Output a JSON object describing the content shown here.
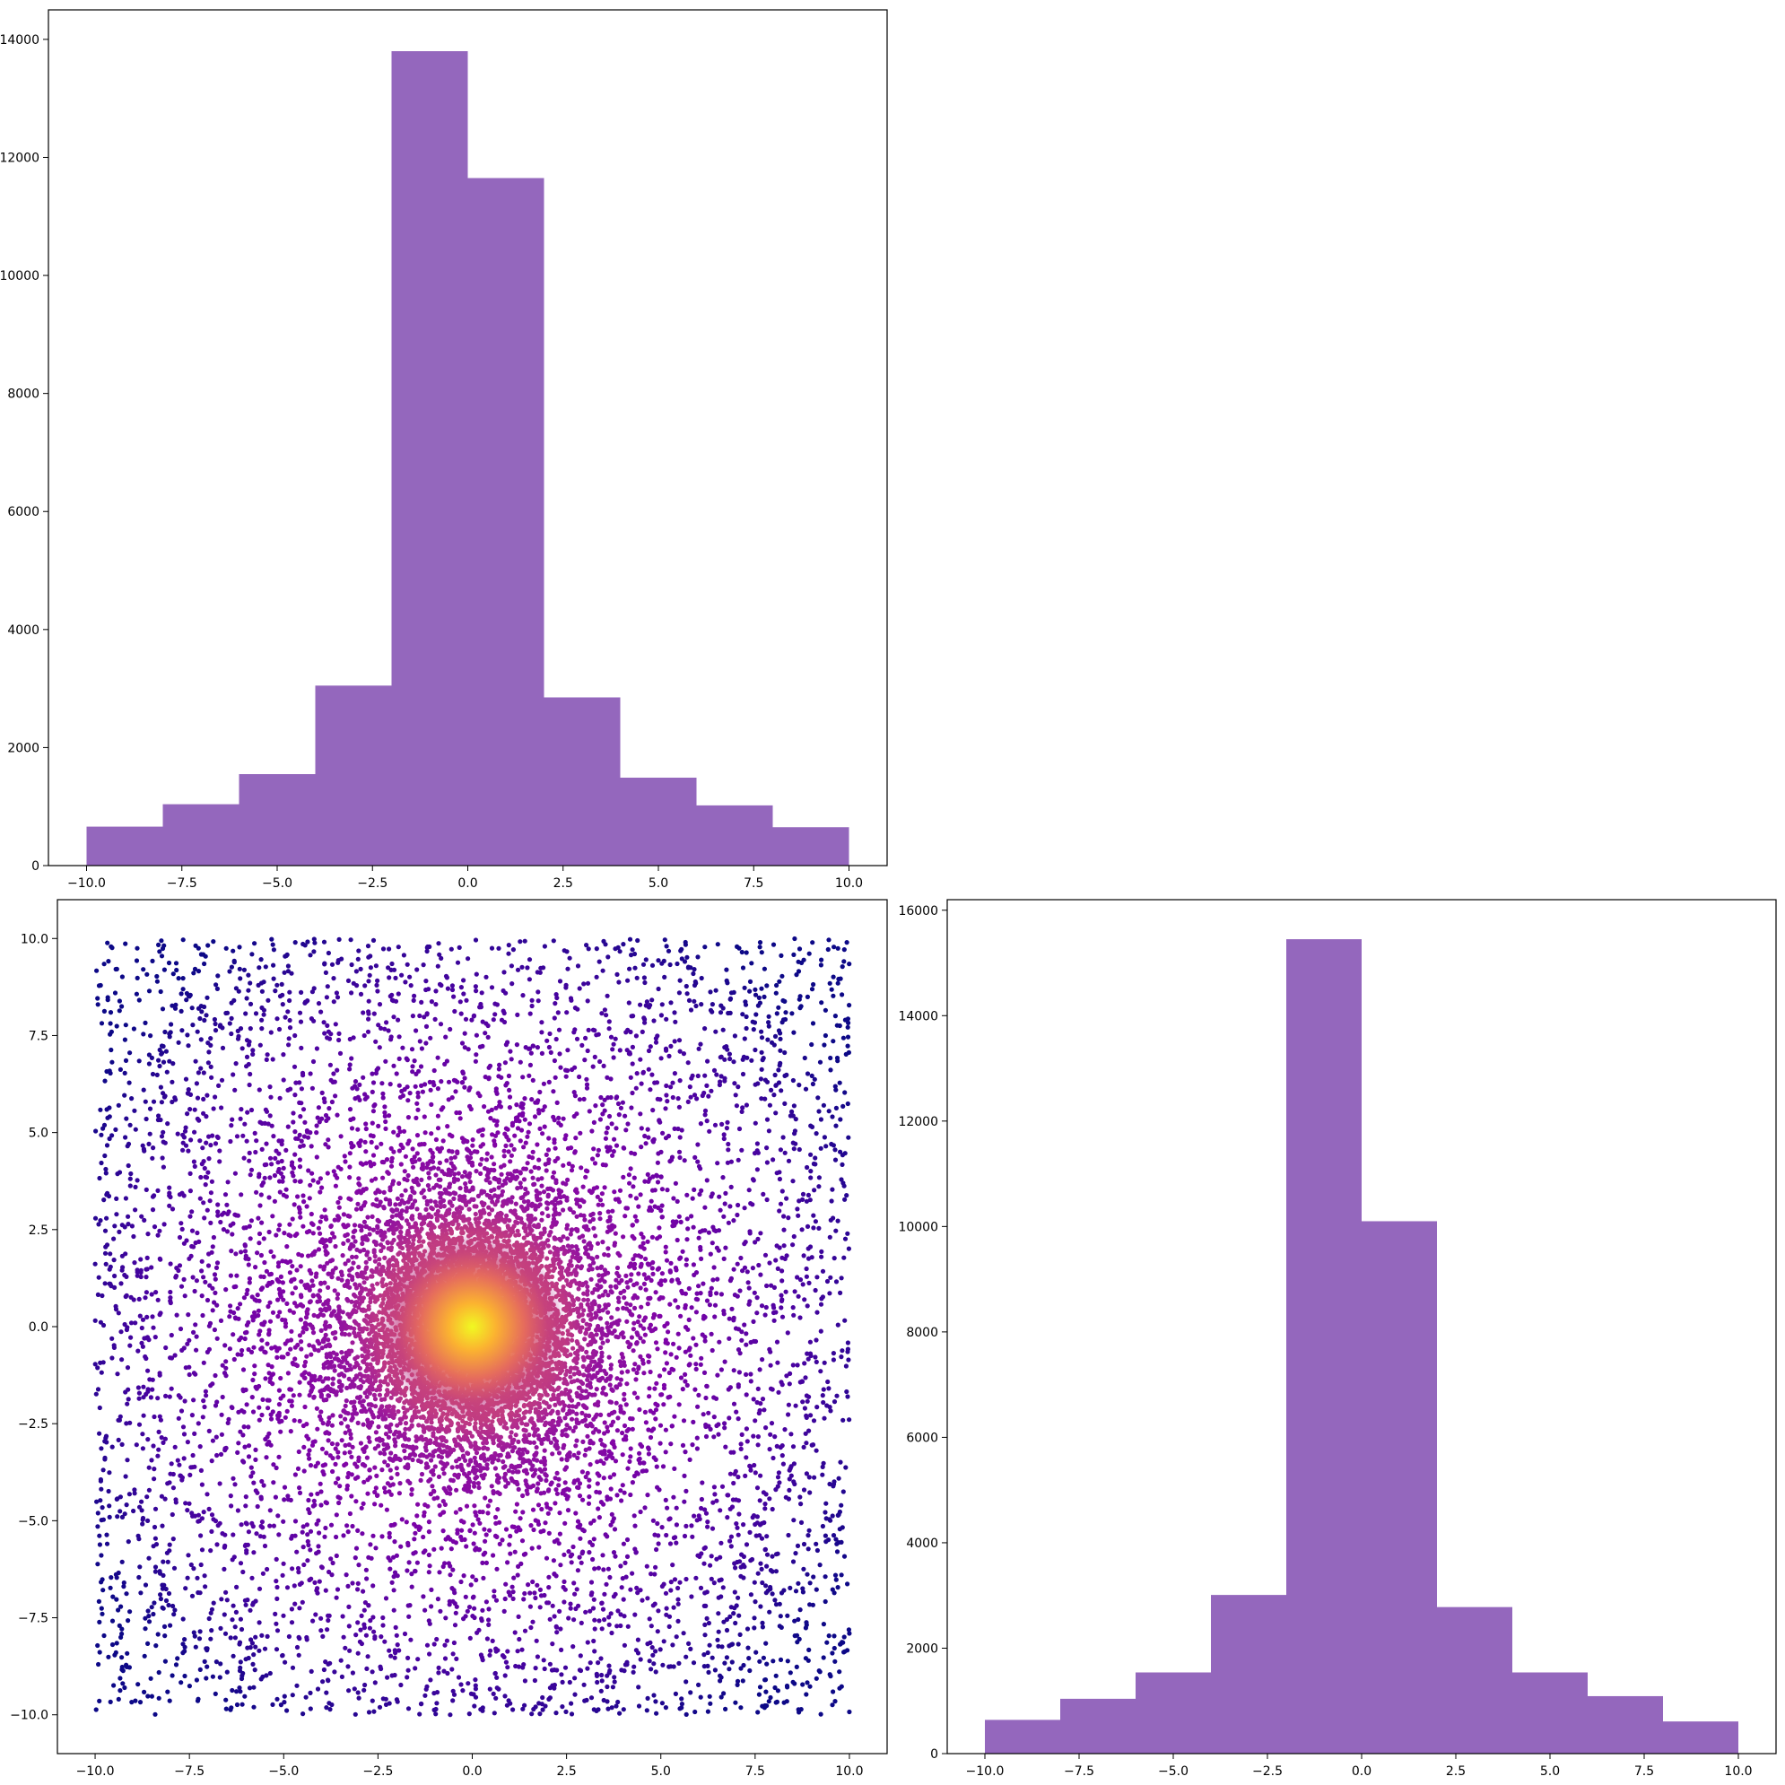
{
  "colors": {
    "hist_fill": "#9467bd",
    "scatter_colormap": "plasma",
    "scatter_low": "#1a0a8c",
    "scatter_high": "#f0f921"
  },
  "chart_data": [
    {
      "id": "top-left-histogram",
      "type": "bar",
      "subtype": "histogram",
      "bin_edges": [
        -10,
        -8,
        -6,
        -4,
        -2,
        0,
        2,
        4,
        6,
        8,
        10
      ],
      "values": [
        660,
        1040,
        1550,
        3050,
        13800,
        11650,
        2850,
        1490,
        1020,
        650
      ],
      "xlim": [
        -11,
        11
      ],
      "ylim": [
        0,
        14500
      ],
      "xticks": [
        -10.0,
        -7.5,
        -5.0,
        -2.5,
        0.0,
        2.5,
        5.0,
        7.5,
        10.0
      ],
      "xtick_labels": [
        "−10.0",
        "−7.5",
        "−5.0",
        "−2.5",
        "0.0",
        "2.5",
        "5.0",
        "7.5",
        "10.0"
      ],
      "yticks": [
        0,
        2000,
        4000,
        6000,
        8000,
        10000,
        12000,
        14000
      ],
      "ytick_labels": [
        "0",
        "2000",
        "4000",
        "6000",
        "8000",
        "10000",
        "12000",
        "14000"
      ],
      "grid": false
    },
    {
      "id": "bottom-left-scatter",
      "type": "scatter",
      "description_of_points": "about 40000 points in [-10,10]x[-10,10]: uniform background plus a dense cluster concentrated around (0,0); color by local density (plasma)",
      "center": [
        0,
        0
      ],
      "xlim": [
        -11,
        11
      ],
      "ylim": [
        -11,
        11
      ],
      "xticks": [
        -10.0,
        -7.5,
        -5.0,
        -2.5,
        0.0,
        2.5,
        5.0,
        7.5,
        10.0
      ],
      "xtick_labels": [
        "−10.0",
        "−7.5",
        "−5.0",
        "−2.5",
        "0.0",
        "2.5",
        "5.0",
        "7.5",
        "10.0"
      ],
      "yticks": [
        -10.0,
        -7.5,
        -5.0,
        -2.5,
        0.0,
        2.5,
        5.0,
        7.5,
        10.0
      ],
      "ytick_labels": [
        "−10.0",
        "−7.5",
        "−5.0",
        "−2.5",
        "0.0",
        "2.5",
        "5.0",
        "7.5",
        "10.0"
      ],
      "grid": false
    },
    {
      "id": "bottom-right-histogram",
      "type": "bar",
      "subtype": "histogram",
      "bin_edges": [
        -10,
        -8,
        -6,
        -4,
        -2,
        0,
        2,
        4,
        6,
        8,
        10
      ],
      "values": [
        640,
        1040,
        1540,
        3010,
        15450,
        10100,
        2780,
        1540,
        1090,
        610
      ],
      "xlim": [
        -11,
        11
      ],
      "ylim": [
        0,
        16200
      ],
      "xticks": [
        -10.0,
        -7.5,
        -5.0,
        -2.5,
        0.0,
        2.5,
        5.0,
        7.5,
        10.0
      ],
      "xtick_labels": [
        "−10.0",
        "−7.5",
        "−5.0",
        "−2.5",
        "0.0",
        "2.5",
        "5.0",
        "7.5",
        "10.0"
      ],
      "yticks": [
        0,
        2000,
        4000,
        6000,
        8000,
        10000,
        12000,
        14000,
        16000
      ],
      "ytick_labels": [
        "0",
        "2000",
        "4000",
        "6000",
        "8000",
        "10000",
        "12000",
        "14000",
        "16000"
      ],
      "grid": false
    }
  ]
}
